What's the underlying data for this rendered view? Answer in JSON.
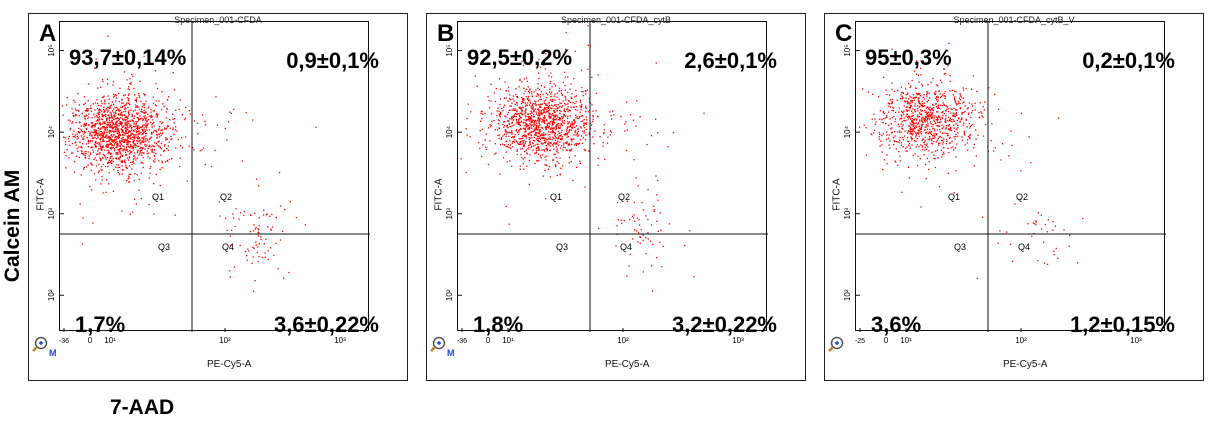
{
  "figure": {
    "y_axis_title": "Calcein AM",
    "x_axis_title": "7-AAD",
    "accent_color": "#ff0000"
  },
  "chart_data": [
    {
      "type": "scatter",
      "panel": "A",
      "title": "Specimen_001-CFDA",
      "xlabel": "PE-Cy5-A",
      "ylabel": "FITC-A",
      "x_ticks": [
        "-36",
        "0",
        "10¹",
        "10²",
        "10³"
      ],
      "y_ticks": [
        "10²",
        "10³",
        "10⁴",
        "10⁵"
      ],
      "quadrant_labels": [
        "Q1",
        "Q2",
        "Q3",
        "Q4"
      ],
      "quadrant_percent": {
        "Q1": "93,7±0,14%",
        "Q2": "0,9±0,1%",
        "Q3": "1,7%",
        "Q4": "3,6±0,22%"
      },
      "point_color": "#ff0000",
      "clusters": [
        {
          "name": "Q1",
          "cx": 12,
          "cy": 10000,
          "count": 1500
        },
        {
          "name": "Q4",
          "cx": 180,
          "cy": 500,
          "count": 90
        }
      ]
    },
    {
      "type": "scatter",
      "panel": "B",
      "title": "Specimen_001-CFDA_cytB",
      "xlabel": "PE-Cy5-A",
      "ylabel": "FITC-A",
      "x_ticks": [
        "-36",
        "0",
        "10¹",
        "10²",
        "10³"
      ],
      "y_ticks": [
        "10²",
        "10³",
        "10⁴",
        "10⁵"
      ],
      "quadrant_labels": [
        "Q1",
        "Q2",
        "Q3",
        "Q4"
      ],
      "quadrant_percent": {
        "Q1": "92,5±0,2%",
        "Q2": "2,6±0,1%",
        "Q3": "1,8%",
        "Q4": "3,2±0,22%"
      },
      "point_color": "#ff0000",
      "clusters": [
        {
          "name": "Q1",
          "cx": 20,
          "cy": 13000,
          "count": 1300
        },
        {
          "name": "Q4",
          "cx": 150,
          "cy": 600,
          "count": 70
        }
      ]
    },
    {
      "type": "scatter",
      "panel": "C",
      "title": "Specimen_001-CFDA_cytB_V",
      "xlabel": "PE-Cy5-A",
      "ylabel": "FITC-A",
      "x_ticks": [
        "-25",
        "0",
        "10¹",
        "10²",
        "10³"
      ],
      "y_ticks": [
        "10²",
        "10³",
        "10⁴",
        "10⁵"
      ],
      "quadrant_labels": [
        "Q1",
        "Q2",
        "Q3",
        "Q4"
      ],
      "quadrant_percent": {
        "Q1": "95±0,3%",
        "Q2": "0,2±0,1%",
        "Q3": "3,6%",
        "Q4": "1,2±0,15%"
      },
      "point_color": "#ff0000",
      "clusters": [
        {
          "name": "Q1",
          "cx": 15,
          "cy": 14000,
          "count": 900
        },
        {
          "name": "Q4",
          "cx": 150,
          "cy": 500,
          "count": 40
        }
      ]
    }
  ]
}
